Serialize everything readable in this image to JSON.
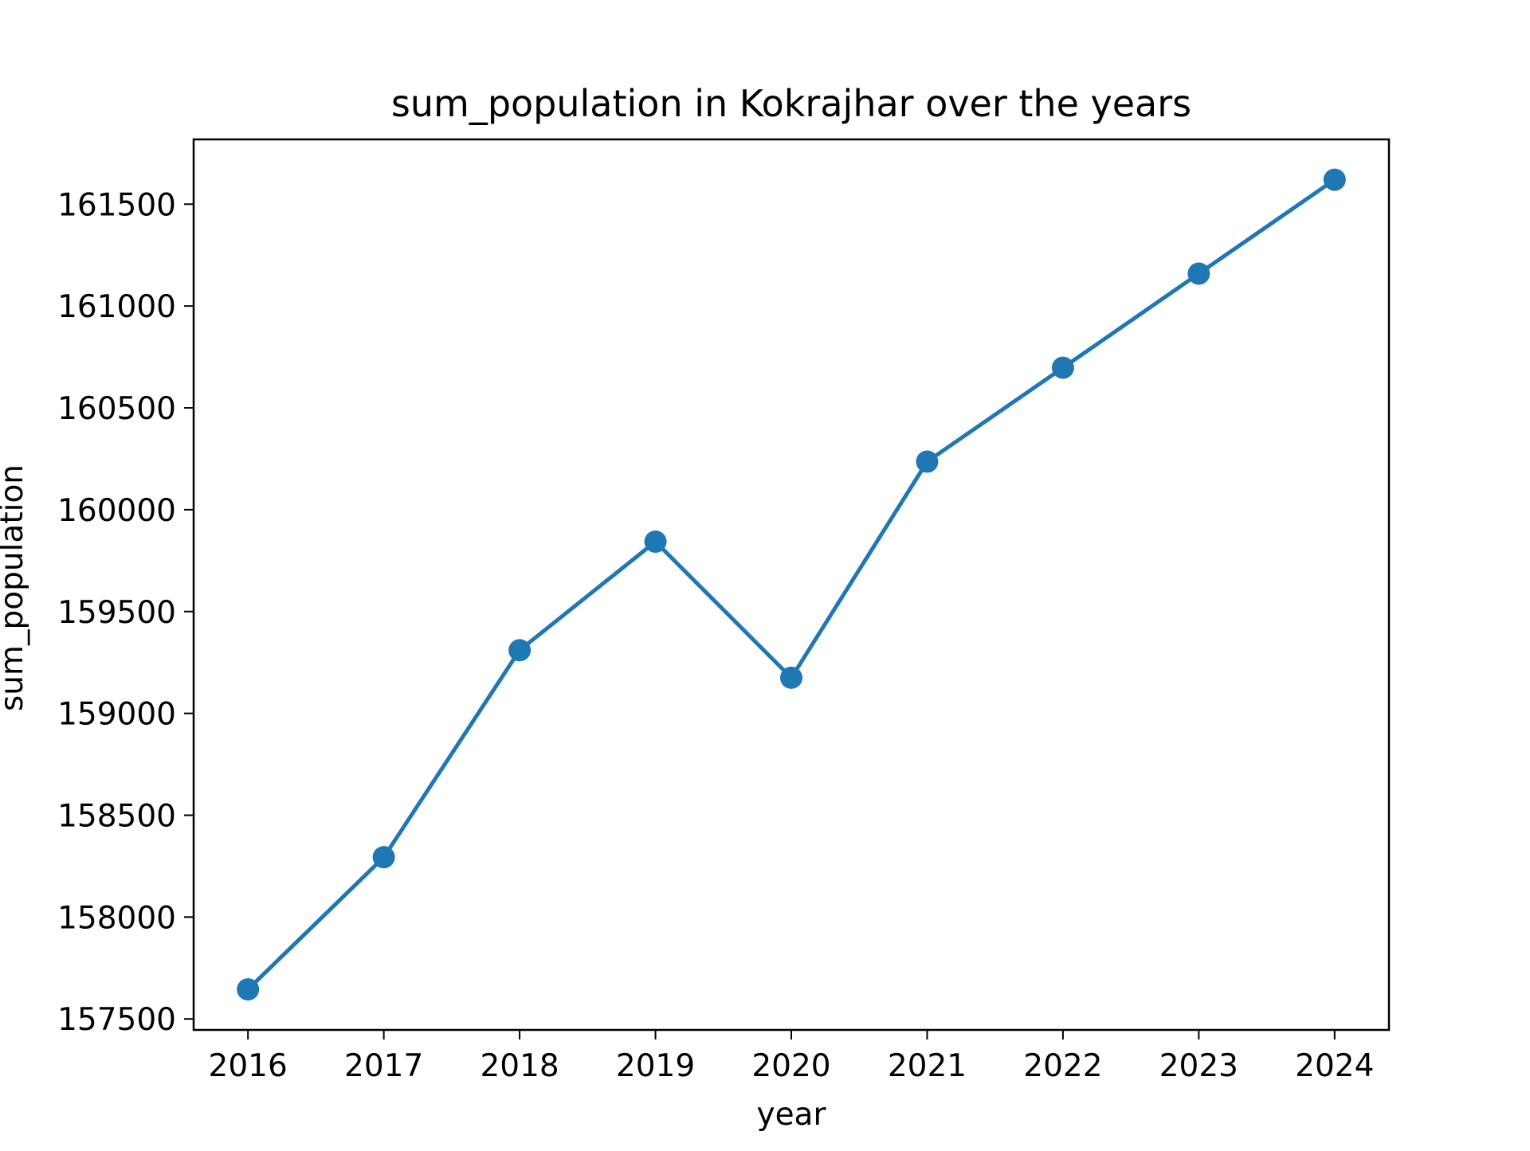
{
  "chart_data": {
    "type": "line",
    "title": "sum_population in Kokrajhar over the years",
    "xlabel": "year",
    "ylabel": "sum_population",
    "x": [
      2016,
      2017,
      2018,
      2019,
      2020,
      2021,
      2022,
      2023,
      2024
    ],
    "x_tick_labels": [
      "2016",
      "2017",
      "2018",
      "2019",
      "2020",
      "2021",
      "2022",
      "2023",
      "2024"
    ],
    "series": [
      {
        "name": "sum_population",
        "values": [
          157645,
          158294,
          159310,
          159843,
          159175,
          160236,
          160697,
          161159,
          161620
        ]
      }
    ],
    "y_ticks": [
      157500,
      158000,
      158500,
      159000,
      159500,
      160000,
      160500,
      161000,
      161500
    ],
    "y_tick_labels": [
      "157500",
      "158000",
      "158500",
      "159000",
      "159500",
      "160000",
      "160500",
      "161000",
      "161500"
    ],
    "xlim": [
      2015.6,
      2024.4
    ],
    "ylim": [
      157446,
      161818
    ],
    "grid": false,
    "legend": false,
    "color": "#1f77b4"
  }
}
